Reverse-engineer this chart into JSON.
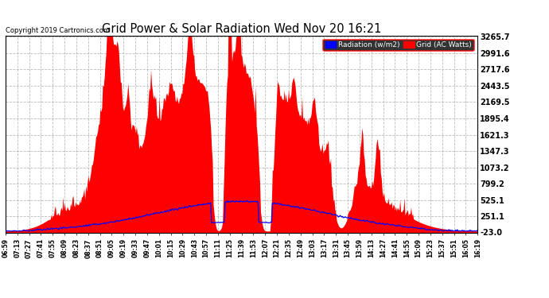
{
  "title": "Grid Power & Solar Radiation Wed Nov 20 16:21",
  "copyright": "Copyright 2019 Cartronics.com",
  "background_color": "#ffffff",
  "plot_bg_color": "#ffffff",
  "grid_color": "#b0b0b0",
  "yticks": [
    -23.0,
    251.1,
    525.1,
    799.2,
    1073.2,
    1347.3,
    1621.3,
    1895.4,
    2169.5,
    2443.5,
    2717.6,
    2991.6,
    3265.7
  ],
  "ymin": -23.0,
  "ymax": 3265.7,
  "red_color": "#ff0000",
  "blue_color": "#0000ff",
  "legend_radiation_label": "Radiation (w/m2)",
  "legend_grid_label": "Grid (AC Watts)",
  "tick_labels": [
    "06:59",
    "07:13",
    "07:27",
    "07:41",
    "07:55",
    "08:09",
    "08:23",
    "08:37",
    "08:51",
    "09:05",
    "09:19",
    "09:33",
    "09:47",
    "10:01",
    "10:15",
    "10:29",
    "10:43",
    "10:57",
    "11:11",
    "11:25",
    "11:39",
    "11:53",
    "12:07",
    "12:21",
    "12:35",
    "12:49",
    "13:03",
    "13:17",
    "13:31",
    "13:45",
    "13:59",
    "14:13",
    "14:27",
    "14:41",
    "14:55",
    "15:09",
    "15:23",
    "15:37",
    "15:51",
    "16:05",
    "16:19"
  ],
  "start_hhmm": "06:59",
  "end_hhmm": "16:19",
  "n_points": 560
}
